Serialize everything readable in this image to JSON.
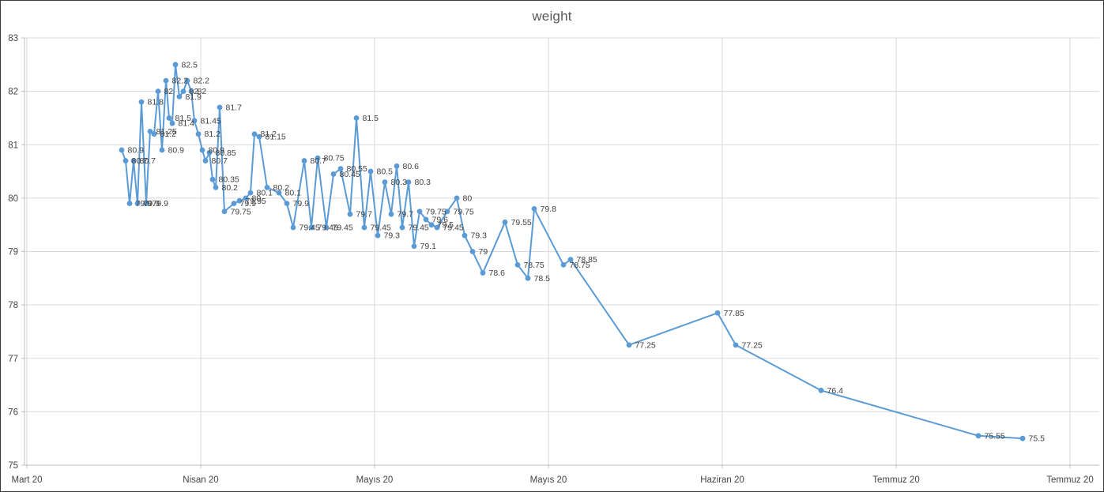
{
  "chart_data": {
    "type": "line",
    "title": "weight",
    "xlabel": "",
    "ylabel": "",
    "ylim": [
      75,
      83
    ],
    "grid": true,
    "legend": "none",
    "colors": {
      "line": "#5B9BD5",
      "marker": "#5B9BD5",
      "gridline": "#D9D9D9",
      "axis_line": "#BFBFBF",
      "tick_label": "#444444",
      "data_label": "#404040",
      "title": "#595959"
    },
    "y_ticks": [
      "83",
      "82",
      "81",
      "80",
      "79",
      "78",
      "77",
      "76",
      "75"
    ],
    "x_ticks": [
      "Mart 20",
      "Nisan 20",
      "Mayıs 20",
      "Mayıs 20",
      "Haziran 20",
      "Temmuz 20",
      "Temmuz 20"
    ],
    "series": [
      {
        "name": "weight",
        "points": [
          {
            "x": 153,
            "y": 80.9,
            "label": "80.9"
          },
          {
            "x": 158,
            "y": 80.7,
            "label": "80.7"
          },
          {
            "x": 163,
            "y": 79.9,
            "label": "79.9"
          },
          {
            "x": 168,
            "y": 80.7,
            "label": "80.7"
          },
          {
            "x": 173,
            "y": 79.9,
            "label": "79.9"
          },
          {
            "x": 178,
            "y": 81.8,
            "label": "81.8"
          },
          {
            "x": 184,
            "y": 79.9,
            "label": "79.9"
          },
          {
            "x": 189,
            "y": 81.25,
            "label": "81.25"
          },
          {
            "x": 194,
            "y": 81.2,
            "label": "81.2"
          },
          {
            "x": 199,
            "y": 82,
            "label": "82"
          },
          {
            "x": 204,
            "y": 80.9,
            "label": "80.9"
          },
          {
            "x": 209,
            "y": 82.2,
            "label": "82.2"
          },
          {
            "x": 213,
            "y": 81.5,
            "label": "81.5"
          },
          {
            "x": 217,
            "y": 81.4,
            "label": "81.4"
          },
          {
            "x": 221,
            "y": 82.5,
            "label": "82.5"
          },
          {
            "x": 226,
            "y": 81.9,
            "label": "81.9"
          },
          {
            "x": 231,
            "y": 82,
            "label": "82"
          },
          {
            "x": 236,
            "y": 82.2,
            "label": "82.2"
          },
          {
            "x": 241,
            "y": 82,
            "label": "82"
          },
          {
            "x": 245,
            "y": 81.45,
            "label": "81.45"
          },
          {
            "x": 250,
            "y": 81.2,
            "label": "81.2"
          },
          {
            "x": 255,
            "y": 80.9,
            "label": "80.9"
          },
          {
            "x": 259,
            "y": 80.7,
            "label": "80.7"
          },
          {
            "x": 264,
            "y": 80.85,
            "label": "80.85"
          },
          {
            "x": 268,
            "y": 80.35,
            "label": "80.35"
          },
          {
            "x": 272,
            "y": 80.2,
            "label": "80.2"
          },
          {
            "x": 277,
            "y": 81.7,
            "label": "81.7"
          },
          {
            "x": 283,
            "y": 79.75,
            "label": "79.75"
          },
          {
            "x": 295,
            "y": 79.9,
            "label": "79.9"
          },
          {
            "x": 302,
            "y": 79.95,
            "label": "79.95"
          },
          {
            "x": 310,
            "y": 80,
            "label": "80"
          },
          {
            "x": 316,
            "y": 80.1,
            "label": "80.1"
          },
          {
            "x": 321,
            "y": 81.2,
            "label": "81.2"
          },
          {
            "x": 327,
            "y": 81.15,
            "label": "81.15"
          },
          {
            "x": 337,
            "y": 80.2,
            "label": "80.2"
          },
          {
            "x": 352,
            "y": 80.1,
            "label": "80.1"
          },
          {
            "x": 362,
            "y": 79.9,
            "label": "79.9"
          },
          {
            "x": 370,
            "y": 79.45,
            "label": "79.45"
          },
          {
            "x": 384,
            "y": 80.7,
            "label": "80.7"
          },
          {
            "x": 393,
            "y": 79.45,
            "label": "79.45"
          },
          {
            "x": 401,
            "y": 80.75,
            "label": "80.75"
          },
          {
            "x": 412,
            "y": 79.45,
            "label": "79.45"
          },
          {
            "x": 421,
            "y": 80.45,
            "label": "80.45"
          },
          {
            "x": 430,
            "y": 80.55,
            "label": "80.55"
          },
          {
            "x": 442,
            "y": 79.7,
            "label": "79.7"
          },
          {
            "x": 450,
            "y": 81.5,
            "label": "81.5"
          },
          {
            "x": 460,
            "y": 79.45,
            "label": "79.45"
          },
          {
            "x": 468,
            "y": 80.5,
            "label": "80.5"
          },
          {
            "x": 477,
            "y": 79.3,
            "label": "79.3"
          },
          {
            "x": 486,
            "y": 80.3,
            "label": "80.3"
          },
          {
            "x": 494,
            "y": 79.7,
            "label": "79.7"
          },
          {
            "x": 501,
            "y": 80.6,
            "label": "80.6"
          },
          {
            "x": 508,
            "y": 79.45,
            "label": "79.45"
          },
          {
            "x": 516,
            "y": 80.3,
            "label": "80.3"
          },
          {
            "x": 523,
            "y": 79.1,
            "label": "79.1"
          },
          {
            "x": 530,
            "y": 79.75,
            "label": "79.75"
          },
          {
            "x": 538,
            "y": 79.6,
            "label": "79.6"
          },
          {
            "x": 545,
            "y": 79.5,
            "label": "79.5"
          },
          {
            "x": 552,
            "y": 79.45,
            "label": "79.45"
          },
          {
            "x": 565,
            "y": 79.75,
            "label": "79.75"
          },
          {
            "x": 577,
            "y": 80,
            "label": "80"
          },
          {
            "x": 587,
            "y": 79.3,
            "label": "79.3"
          },
          {
            "x": 597,
            "y": 79,
            "label": "79"
          },
          {
            "x": 610,
            "y": 78.6,
            "label": "78.6"
          },
          {
            "x": 638,
            "y": 79.55,
            "label": "79.55"
          },
          {
            "x": 654,
            "y": 78.75,
            "label": "78.75"
          },
          {
            "x": 667,
            "y": 78.5,
            "label": "78.5"
          },
          {
            "x": 675,
            "y": 79.8,
            "label": "79.8"
          },
          {
            "x": 712,
            "y": 78.75,
            "label": "78.75"
          },
          {
            "x": 721,
            "y": 78.85,
            "label": "78.85"
          },
          {
            "x": 795,
            "y": 77.25,
            "label": "77.25"
          },
          {
            "x": 907,
            "y": 77.85,
            "label": "77.85"
          },
          {
            "x": 930,
            "y": 77.25,
            "label": "77.25"
          },
          {
            "x": 1038,
            "y": 76.4,
            "label": "76.4"
          },
          {
            "x": 1237,
            "y": 75.55,
            "label": "75.55"
          },
          {
            "x": 1293,
            "y": 75.5,
            "label": "75.5"
          }
        ]
      }
    ]
  }
}
